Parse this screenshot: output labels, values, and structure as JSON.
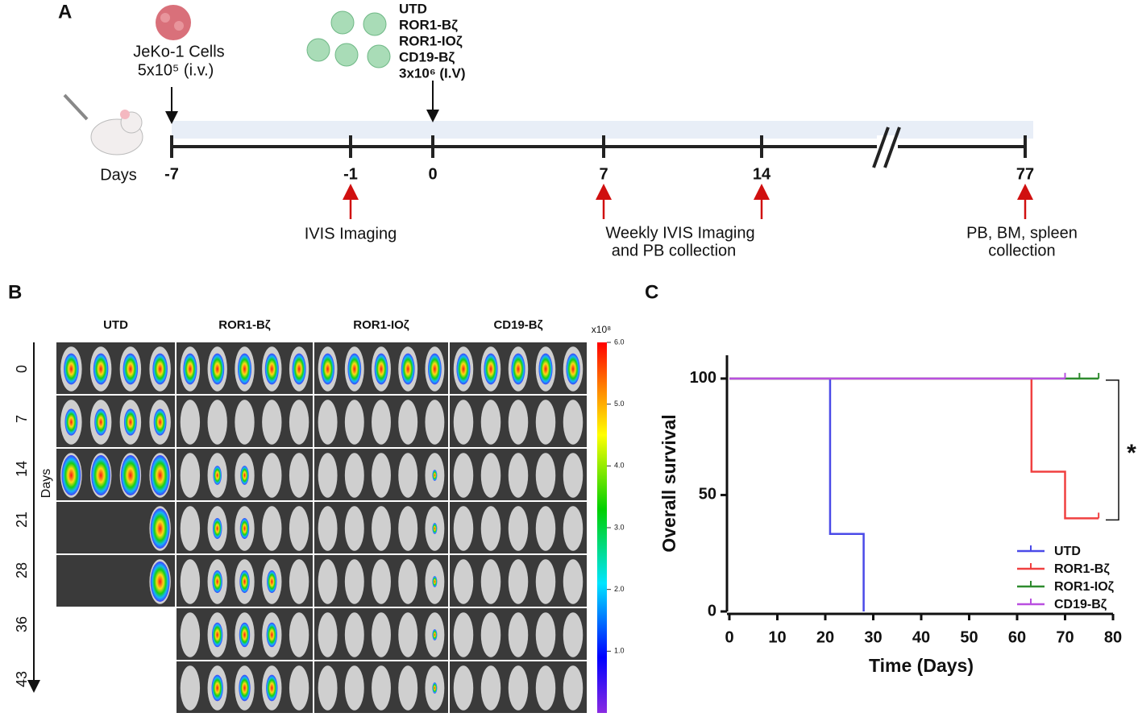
{
  "panel_a": {
    "letter": "A",
    "injection_label": "JeKo-1 Cells",
    "injection_dose": "5x10⁵ (i.v.)",
    "car_groups": [
      "UTD",
      "ROR1-Bζ",
      "ROR1-IOζ",
      "CD19-Bζ"
    ],
    "car_dose": "3x10⁶ (I.V)",
    "days_label": "Days",
    "days": [
      "-7",
      "-1",
      "0",
      "7",
      "14",
      "77"
    ],
    "notes": [
      "IVIS Imaging",
      "Weekly IVIS Imaging",
      "and PB collection",
      "PB, BM, spleen",
      "collection"
    ]
  },
  "panel_b": {
    "letter": "B",
    "groups": [
      "UTD",
      "ROR1-Bζ",
      "ROR1-IOζ",
      "CD19-Bζ"
    ],
    "days_label": "Days",
    "days": [
      "0",
      "7",
      "14",
      "21",
      "28",
      "36",
      "43"
    ],
    "colorbar": {
      "unit": "x10⁸",
      "ticks": [
        {
          "value": 1,
          "label": "1.0"
        },
        {
          "value": 2,
          "label": "2.0"
        },
        {
          "value": 3,
          "label": "3.0"
        },
        {
          "value": 4,
          "label": "4.0"
        },
        {
          "value": 5,
          "label": "5.0"
        },
        {
          "value": 6,
          "label": "6.0"
        }
      ]
    }
  },
  "panel_c": {
    "letter": "C"
  },
  "chart_data": {
    "type": "survival",
    "xlabel": "Time (Days)",
    "ylabel": "Overall survival",
    "annotation": "*",
    "xlim": [
      0,
      80
    ],
    "xticks": [
      0,
      10,
      20,
      30,
      40,
      50,
      60,
      70,
      80
    ],
    "ylim": [
      0,
      110
    ],
    "yticks": [
      0,
      50,
      100
    ],
    "legend": "lower right",
    "series": [
      {
        "name": "UTD",
        "color": "#4a4ae8",
        "x": [
          0,
          21,
          21,
          28,
          28
        ],
        "values": [
          100,
          100,
          33.3,
          33.3,
          0
        ],
        "censor_x": []
      },
      {
        "name": "ROR1-Bζ",
        "color": "#f04040",
        "x": [
          0,
          63,
          63,
          70,
          70,
          77
        ],
        "values": [
          100,
          100,
          60,
          60,
          40,
          40
        ],
        "censor_x": [
          63,
          70,
          77
        ]
      },
      {
        "name": "ROR1-IOζ",
        "color": "#2e8b2e",
        "x": [
          0,
          77
        ],
        "values": [
          100,
          100
        ],
        "censor_x": [
          70,
          73,
          77
        ]
      },
      {
        "name": "CD19-Bζ",
        "color": "#b94fe0",
        "x": [
          0,
          70
        ],
        "values": [
          100,
          100
        ],
        "censor_x": [
          70
        ]
      }
    ]
  }
}
